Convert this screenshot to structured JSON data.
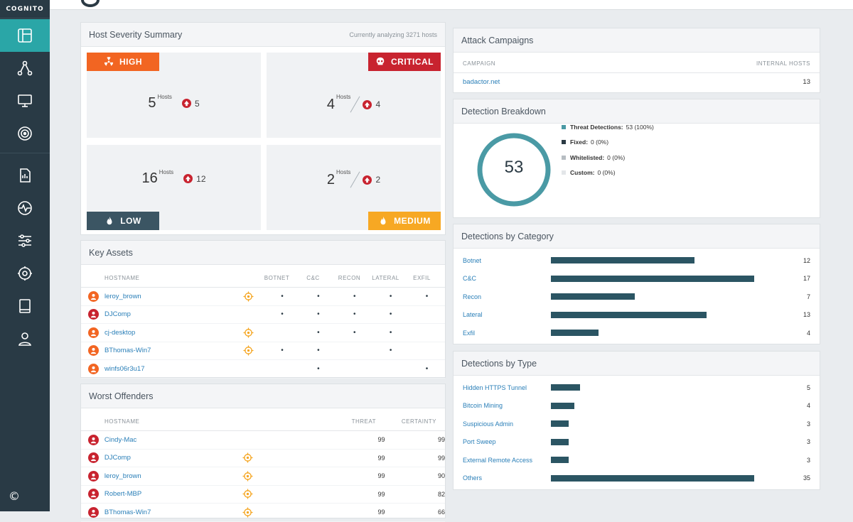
{
  "brand": "COGNITO",
  "copyright": "©",
  "nav": [
    {
      "icon": "dashboard-icon",
      "active": true
    },
    {
      "icon": "network-icon"
    },
    {
      "icon": "monitor-icon"
    },
    {
      "icon": "radar-icon"
    },
    {
      "icon": "report-icon"
    },
    {
      "icon": "activity-icon"
    },
    {
      "icon": "sliders-icon"
    },
    {
      "icon": "gear-icon"
    },
    {
      "icon": "book-icon"
    },
    {
      "icon": "user-icon"
    }
  ],
  "host_severity": {
    "title": "Host Severity Summary",
    "subtitle": "Currently analyzing 3271 hosts",
    "cells": {
      "high": {
        "tag": "HIGH",
        "hosts": "5",
        "hosts_label": "Hosts",
        "delta": "5",
        "color": "#f26522"
      },
      "critical": {
        "tag": "CRITICAL",
        "hosts": "4",
        "hosts_label": "Hosts",
        "delta": "4",
        "color": "#c8232f"
      },
      "low": {
        "tag": "LOW",
        "hosts": "16",
        "hosts_label": "Hosts",
        "delta": "12",
        "color": "#3b5563"
      },
      "medium": {
        "tag": "MEDIUM",
        "hosts": "2",
        "hosts_label": "Hosts",
        "delta": "2",
        "color": "#f7a823"
      }
    }
  },
  "key_assets": {
    "title": "Key Assets",
    "columns": [
      "HOSTNAME",
      "BOTNET",
      "C&C",
      "RECON",
      "LATERAL",
      "EXFIL"
    ],
    "rows": [
      {
        "name": "leroy_brown",
        "color": "#f26522",
        "target": true,
        "dots": [
          "•",
          "•",
          "•",
          "•",
          "•"
        ]
      },
      {
        "name": "DJComp",
        "color": "#c8232f",
        "target": false,
        "dots": [
          "•",
          "•",
          "•",
          "•",
          ""
        ]
      },
      {
        "name": "cj-desktop",
        "color": "#f26522",
        "target": true,
        "dots": [
          "",
          "•",
          "•",
          "•",
          ""
        ]
      },
      {
        "name": "BThomas-Win7",
        "color": "#f26522",
        "target": true,
        "dots": [
          "•",
          "•",
          "",
          "•",
          ""
        ]
      },
      {
        "name": "winfs06r3u17",
        "color": "#f26522",
        "target": false,
        "dots": [
          "",
          "•",
          "",
          "",
          "•"
        ]
      }
    ]
  },
  "worst_offenders": {
    "title": "Worst Offenders",
    "columns": [
      "HOSTNAME",
      "THREAT",
      "CERTAINTY"
    ],
    "rows": [
      {
        "name": "Cindy-Mac",
        "color": "#c8232f",
        "target": false,
        "threat": "99",
        "certainty": "99"
      },
      {
        "name": "DJComp",
        "color": "#c8232f",
        "target": true,
        "threat": "99",
        "certainty": "99"
      },
      {
        "name": "leroy_brown",
        "color": "#c8232f",
        "target": true,
        "threat": "99",
        "certainty": "90"
      },
      {
        "name": "Robert-MBP",
        "color": "#c8232f",
        "target": true,
        "threat": "99",
        "certainty": "82"
      },
      {
        "name": "BThomas-Win7",
        "color": "#c8232f",
        "target": true,
        "threat": "99",
        "certainty": "66"
      }
    ]
  },
  "attack_campaigns": {
    "title": "Attack Campaigns",
    "columns": [
      "CAMPAIGN",
      "INTERNAL HOSTS"
    ],
    "rows": [
      {
        "campaign": "badactor.net",
        "hosts": "13"
      }
    ]
  },
  "detection_breakdown": {
    "title": "Detection Breakdown",
    "total": "53",
    "legend": [
      {
        "label": "Threat Detections:",
        "value": "53 (100%)",
        "color": "#4a9aa5"
      },
      {
        "label": "Fixed:",
        "value": "0 (0%)",
        "color": "#2b3a44"
      },
      {
        "label": "Whitelisted:",
        "value": "0 (0%)",
        "color": "#b7bdc2"
      },
      {
        "label": "Custom:",
        "value": "0 (0%)",
        "color": "#e3e6e9"
      }
    ],
    "ring_color": "#4a9aa5"
  },
  "detections_by_category": {
    "title": "Detections by Category",
    "max": 17,
    "rows": [
      {
        "label": "Botnet",
        "value": 12
      },
      {
        "label": "C&C",
        "value": 17
      },
      {
        "label": "Recon",
        "value": 7
      },
      {
        "label": "Lateral",
        "value": 13
      },
      {
        "label": "Exfil",
        "value": 4
      }
    ]
  },
  "detections_by_type": {
    "title": "Detections by Type",
    "max": 35,
    "rows": [
      {
        "label": "Hidden HTTPS Tunnel",
        "value": 5
      },
      {
        "label": "Bitcoin Mining",
        "value": 4
      },
      {
        "label": "Suspicious Admin",
        "value": 3
      },
      {
        "label": "Port Sweep",
        "value": 3
      },
      {
        "label": "External Remote Access",
        "value": 3
      },
      {
        "label": "Others",
        "value": 35
      }
    ]
  }
}
